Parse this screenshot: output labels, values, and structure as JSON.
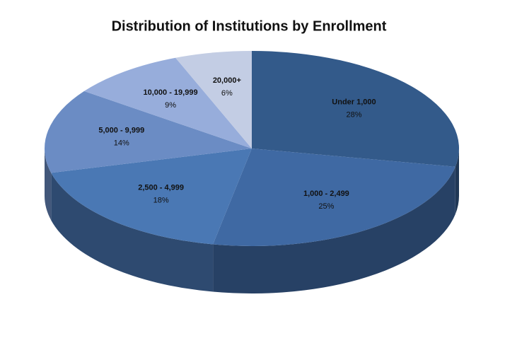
{
  "chart_data": {
    "type": "pie",
    "title": "Distribution of Institutions by Enrollment",
    "categories": [
      "Under 1,000",
      "1,000 - 2,499",
      "2,500 - 4,999",
      "5,000 - 9,999",
      "10,000 - 19,999",
      "20,000+"
    ],
    "values": [
      28,
      25,
      18,
      14,
      9,
      6
    ],
    "value_labels": [
      "28%",
      "25%",
      "18%",
      "14%",
      "9%",
      "6%"
    ],
    "colors": [
      "#335a8a",
      "#3f69a3",
      "#4a78b4",
      "#6b8cc4",
      "#97addb",
      "#c3cde4"
    ]
  }
}
